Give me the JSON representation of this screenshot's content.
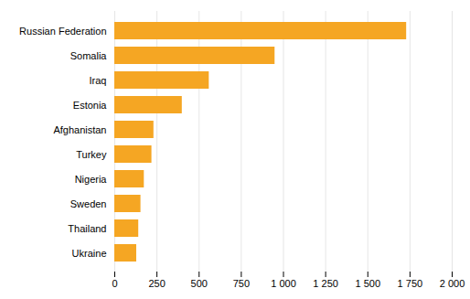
{
  "chart_data": {
    "type": "bar",
    "orientation": "horizontal",
    "categories": [
      "Ukraine",
      "Thailand",
      "Sweden",
      "Nigeria",
      "Turkey",
      "Afghanistan",
      "Estonia",
      "Iraq",
      "Somalia",
      "Russian Federation"
    ],
    "values": [
      130,
      142,
      155,
      175,
      220,
      232,
      400,
      560,
      950,
      1730
    ],
    "color": "#F5A623",
    "xlim": [
      0,
      2000
    ],
    "xticks": [
      0,
      250,
      500,
      750,
      {
        "value": 1000,
        "label": "1 000"
      },
      {
        "value": 1250,
        "label": "1 250"
      },
      {
        "value": 1500,
        "label": "1 500"
      },
      {
        "value": 1750,
        "label": "1 750"
      },
      {
        "value": 2000,
        "label": "2 000"
      }
    ],
    "grid": true
  }
}
